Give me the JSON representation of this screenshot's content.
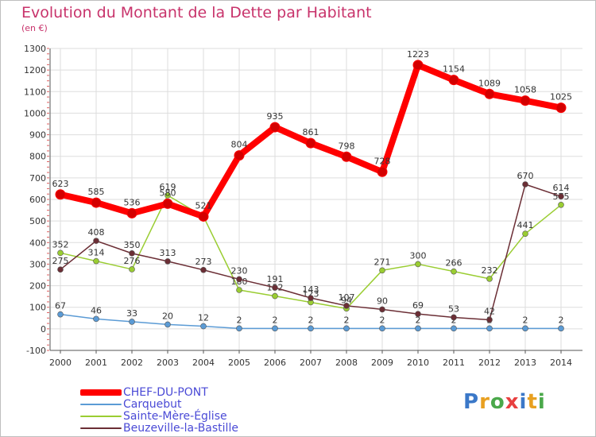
{
  "header": {
    "title": "Evolution du Montant de la Dette par Habitant",
    "subtitle": "(en €)"
  },
  "logo": {
    "text": "Proxiti",
    "colors": [
      "#3b78c8",
      "#e8a020",
      "#4aa84a",
      "#e84040",
      "#3b78c8",
      "#e8a020",
      "#4aa84a"
    ]
  },
  "chart_data": {
    "type": "line",
    "x": [
      "2000",
      "2001",
      "2002",
      "2003",
      "2004",
      "2005",
      "2006",
      "2007",
      "2008",
      "2009",
      "2010",
      "2011",
      "2012",
      "2013",
      "2014"
    ],
    "ylim": [
      -100,
      1300
    ],
    "yticks": [
      -100,
      0,
      100,
      200,
      300,
      400,
      500,
      600,
      700,
      800,
      900,
      1000,
      1100,
      1200,
      1300
    ],
    "grid": true,
    "legend_position": "bottom-left",
    "series": [
      {
        "name": "Carquebut",
        "color": "#5b9bd5",
        "values": [
          67,
          46,
          33,
          20,
          12,
          2,
          2,
          2,
          2,
          2,
          2,
          2,
          2,
          2,
          2
        ],
        "label_values": [
          67,
          46,
          33,
          20,
          12,
          2,
          2,
          2,
          2,
          2,
          2,
          2,
          2,
          2,
          2
        ]
      },
      {
        "name": "Sainte-Mère-Église",
        "color": "#9acd32",
        "values": [
          352,
          314,
          276,
          619,
          521,
          180,
          152,
          123,
          94,
          271,
          300,
          266,
          232,
          441,
          575
        ],
        "label_values": [
          352,
          314,
          276,
          619,
          null,
          180,
          152,
          123,
          94,
          271,
          300,
          266,
          232,
          441,
          575
        ]
      },
      {
        "name": "Beuzeville-la-Bastille",
        "color": "#6b2e35",
        "values": [
          275,
          408,
          350,
          313,
          273,
          230,
          191,
          143,
          107,
          90,
          69,
          53,
          42,
          670,
          614
        ],
        "label_values": [
          275,
          408,
          350,
          313,
          273,
          230,
          191,
          143,
          107,
          90,
          69,
          53,
          42,
          670,
          614
        ]
      },
      {
        "name": "CHEF-DU-PONT",
        "color": "#ff0000",
        "values": [
          623,
          585,
          536,
          580,
          521,
          804,
          935,
          861,
          798,
          728,
          1223,
          1154,
          1089,
          1058,
          1025
        ],
        "label_values": [
          623,
          585,
          536,
          580,
          521,
          804,
          935,
          861,
          798,
          728,
          1223,
          1154,
          1089,
          1058,
          1025
        ]
      }
    ],
    "legend_order": [
      "CHEF-DU-PONT",
      "Carquebut",
      "Sainte-Mère-Église",
      "Beuzeville-la-Bastille"
    ]
  }
}
